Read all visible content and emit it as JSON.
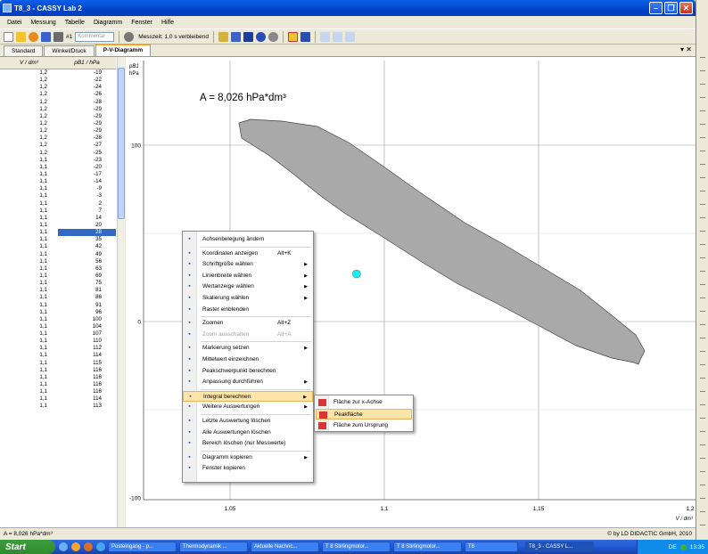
{
  "window": {
    "title": "T8_3 - CASSY Lab 2"
  },
  "menubar": [
    "Datei",
    "Messung",
    "Tabelle",
    "Diagramm",
    "Fenster",
    "Hilfe"
  ],
  "toolbar": {
    "channel": "#1",
    "kommentar_placeholder": "Kommentar",
    "messzeit": "Messzeit: 1,0 s verbleibend"
  },
  "tabs": [
    "Standard",
    "Winkel/Druck",
    "P-V-Diagramm"
  ],
  "table": {
    "col_v": "V / dm³",
    "col_p": "pB1 / hPa",
    "rows": [
      [
        "1,2",
        "-19"
      ],
      [
        "1,2",
        "-22"
      ],
      [
        "1,2",
        "-24"
      ],
      [
        "1,2",
        "-26"
      ],
      [
        "1,2",
        "-28"
      ],
      [
        "1,2",
        "-29"
      ],
      [
        "1,2",
        "-29"
      ],
      [
        "1,2",
        "-29"
      ],
      [
        "1,2",
        "-29"
      ],
      [
        "1,2",
        "-28"
      ],
      [
        "1,2",
        "-27"
      ],
      [
        "1,2",
        "-25"
      ],
      [
        "1,1",
        "-23"
      ],
      [
        "1,1",
        "-20"
      ],
      [
        "1,1",
        "-17"
      ],
      [
        "1,1",
        "-14"
      ],
      [
        "1,1",
        "-9"
      ],
      [
        "1,1",
        "-3"
      ],
      [
        "1,1",
        "2"
      ],
      [
        "1,1",
        "7"
      ],
      [
        "1,1",
        "14"
      ],
      [
        "1,1",
        "20"
      ],
      [
        "1,1",
        "28"
      ],
      [
        "1,1",
        "35"
      ],
      [
        "1,1",
        "42"
      ],
      [
        "1,1",
        "49"
      ],
      [
        "1,1",
        "56"
      ],
      [
        "1,1",
        "63"
      ],
      [
        "1,1",
        "69"
      ],
      [
        "1,1",
        "75"
      ],
      [
        "1,1",
        "81"
      ],
      [
        "1,1",
        "86"
      ],
      [
        "1,1",
        "91"
      ],
      [
        "1,1",
        "96"
      ],
      [
        "1,1",
        "100"
      ],
      [
        "1,1",
        "104"
      ],
      [
        "1,1",
        "107"
      ],
      [
        "1,1",
        "110"
      ],
      [
        "1,1",
        "112"
      ],
      [
        "1,1",
        "114"
      ],
      [
        "1,1",
        "115"
      ],
      [
        "1,1",
        "116"
      ],
      [
        "1,1",
        "116"
      ],
      [
        "1,1",
        "116"
      ],
      [
        "1,1",
        "116"
      ],
      [
        "1,1",
        "114"
      ],
      [
        "1,1",
        "113"
      ]
    ],
    "selected_row": 22
  },
  "plot": {
    "annotation": "A = 8,026 hPa*dm³",
    "y_unit_label": "pB1",
    "y_unit": "hPa",
    "x_unit": "V / dm³",
    "y_ticks": [
      "100",
      "0",
      "-100"
    ],
    "x_ticks": [
      "1,05",
      "1,1",
      "1,15",
      "1,2"
    ],
    "copyright": "© by LD DIDACTIC GmbH, 2010",
    "fill_color": "#a9a9a9",
    "marker_color": "#26e6e6",
    "cursor_point": {
      "V": 1.091,
      "p": 27
    }
  },
  "status": {
    "left": "A = 8,026 hPa*dm³"
  },
  "context_menu": {
    "items": [
      {
        "label": "Achsenbelegung ändern",
        "shortcut": "",
        "submenu": false,
        "disabled": false,
        "icon": "axis-icon"
      },
      {
        "label": "Koordinaten anzeigen",
        "shortcut": "Alt+K",
        "submenu": false,
        "disabled": false,
        "icon": "coordinates-icon"
      },
      {
        "label": "Schriftgröße wählen",
        "shortcut": "",
        "submenu": true,
        "disabled": false,
        "icon": "font-size-icon"
      },
      {
        "label": "Linienbreite wählen",
        "shortcut": "",
        "submenu": true,
        "disabled": false,
        "icon": "line-width-icon"
      },
      {
        "label": "Wertanzeige wählen",
        "shortcut": "",
        "submenu": true,
        "disabled": false,
        "icon": "value-display-icon"
      },
      {
        "label": "Skalierung wählen",
        "shortcut": "",
        "submenu": true,
        "disabled": false,
        "icon": "scale-icon"
      },
      {
        "label": "Raster einblenden",
        "shortcut": "",
        "submenu": false,
        "disabled": false,
        "icon": "grid-icon"
      },
      {
        "label": "Zoomen",
        "shortcut": "Alt+Z",
        "submenu": false,
        "disabled": false,
        "icon": "zoom-icon"
      },
      {
        "label": "Zoom ausschalten",
        "shortcut": "Alt+A",
        "submenu": false,
        "disabled": true,
        "icon": "zoom-off-icon"
      },
      {
        "label": "Markierung setzen",
        "shortcut": "",
        "submenu": true,
        "disabled": false,
        "icon": "marker-icon"
      },
      {
        "label": "Mittelwert einzeichnen",
        "shortcut": "",
        "submenu": false,
        "disabled": false,
        "icon": "mean-icon"
      },
      {
        "label": "Peakschwerpunkt berechnen",
        "shortcut": "",
        "submenu": false,
        "disabled": false,
        "icon": "peak-center-icon"
      },
      {
        "label": "Anpassung durchführen",
        "shortcut": "",
        "submenu": true,
        "disabled": false,
        "icon": "fit-icon"
      },
      {
        "label": "Integral berechnen",
        "shortcut": "",
        "submenu": true,
        "disabled": false,
        "icon": "integral-icon"
      },
      {
        "label": "Weitere Auswertungen",
        "shortcut": "",
        "submenu": true,
        "disabled": false,
        "icon": "more-evaluations-icon"
      },
      {
        "label": "Letzte Auswertung löschen",
        "shortcut": "",
        "submenu": false,
        "disabled": false,
        "icon": "delete-last-icon"
      },
      {
        "label": "Alle Auswertungen löschen",
        "shortcut": "",
        "submenu": false,
        "disabled": false,
        "icon": "delete-all-icon"
      },
      {
        "label": "Bereich löschen (nur Messwerte)",
        "shortcut": "",
        "submenu": false,
        "disabled": false,
        "icon": "delete-range-icon"
      },
      {
        "label": "Diagramm kopieren",
        "shortcut": "",
        "submenu": true,
        "disabled": false,
        "icon": "copy-diagram-icon"
      },
      {
        "label": "Fenster kopieren",
        "shortcut": "",
        "submenu": false,
        "disabled": false,
        "icon": "copy-window-icon"
      }
    ],
    "highlighted": 13
  },
  "submenu": {
    "items": [
      "Fläche zur x-Achse",
      "Peakfläche",
      "Fläche zum Ursprung"
    ],
    "highlighted": 1
  },
  "taskbar": {
    "start": "Start",
    "items": [
      "Posteingang - p...",
      "Thermodynamik ...",
      "Aktuelle Nachric...",
      "T 8 Stirlingmotor...",
      "T 8 Stirlingmotor...",
      "T8",
      "T8_3 - CASSY L..."
    ],
    "active": 6,
    "lang": "DE",
    "clock": "13:35"
  }
}
